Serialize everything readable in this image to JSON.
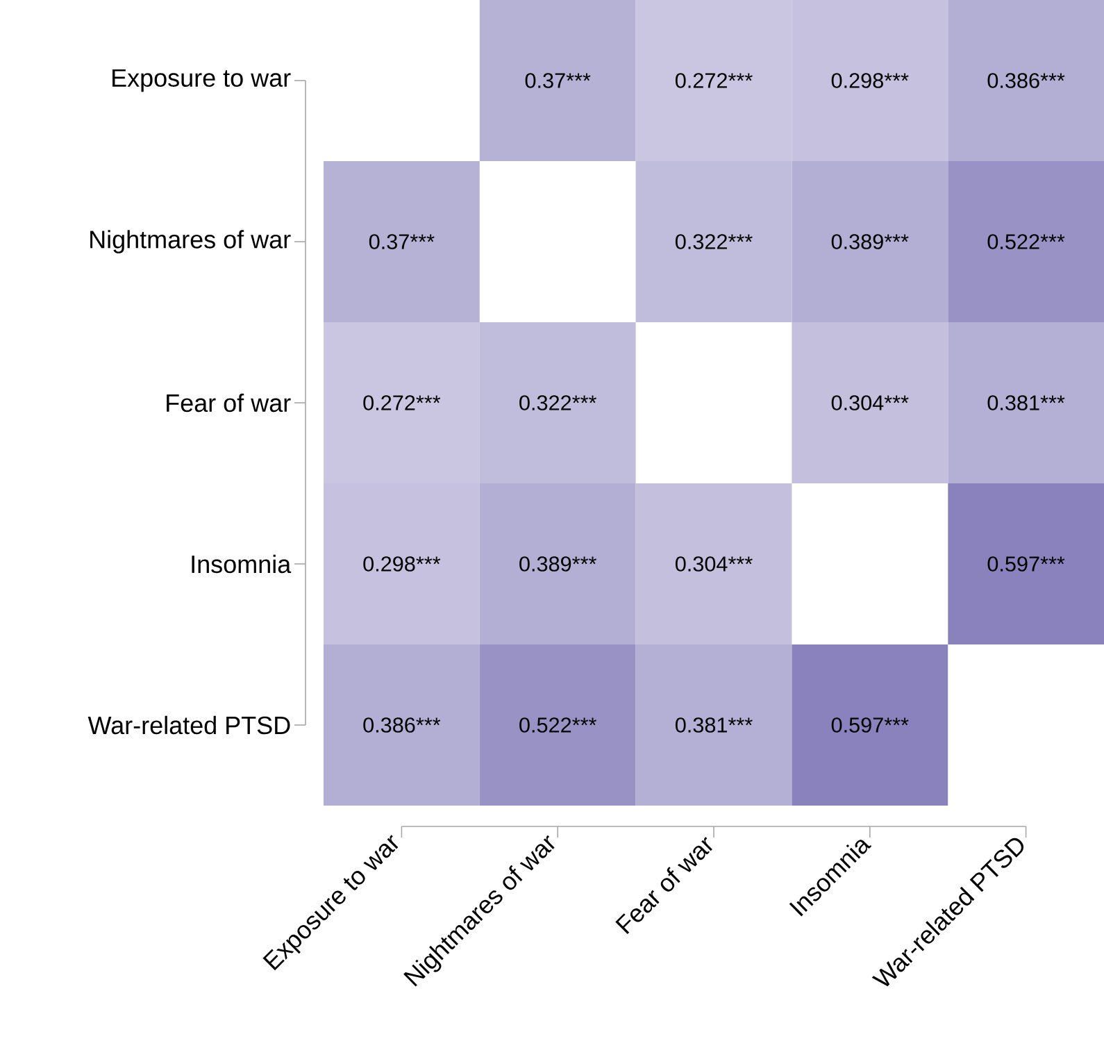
{
  "chart_data": {
    "type": "heatmap",
    "categories": [
      "Exposure to war",
      "Nightmares of war",
      "Fear of war",
      "Insomnia",
      "War-related PTSD"
    ],
    "y_categories": [
      "Exposure to war",
      "Nightmares of war",
      "Fear of war",
      "Insomnia",
      "War-related PTSD"
    ],
    "cells": [
      [
        null,
        0.37,
        0.272,
        0.298,
        0.386
      ],
      [
        0.37,
        null,
        0.322,
        0.389,
        0.522
      ],
      [
        0.272,
        0.322,
        null,
        0.304,
        0.381
      ],
      [
        0.298,
        0.389,
        0.304,
        null,
        0.597
      ],
      [
        0.386,
        0.522,
        0.381,
        0.597,
        null
      ]
    ],
    "cell_labels": [
      [
        null,
        "0.37***",
        "0.272***",
        "0.298***",
        "0.386***"
      ],
      [
        "0.37***",
        null,
        "0.322***",
        "0.389***",
        "0.522***"
      ],
      [
        "0.272***",
        "0.322***",
        null,
        "0.304***",
        "0.381***"
      ],
      [
        "0.298***",
        "0.389***",
        "0.304***",
        null,
        "0.597***"
      ],
      [
        "0.386***",
        "0.522***",
        "0.381***",
        "0.597***",
        null
      ]
    ]
  }
}
